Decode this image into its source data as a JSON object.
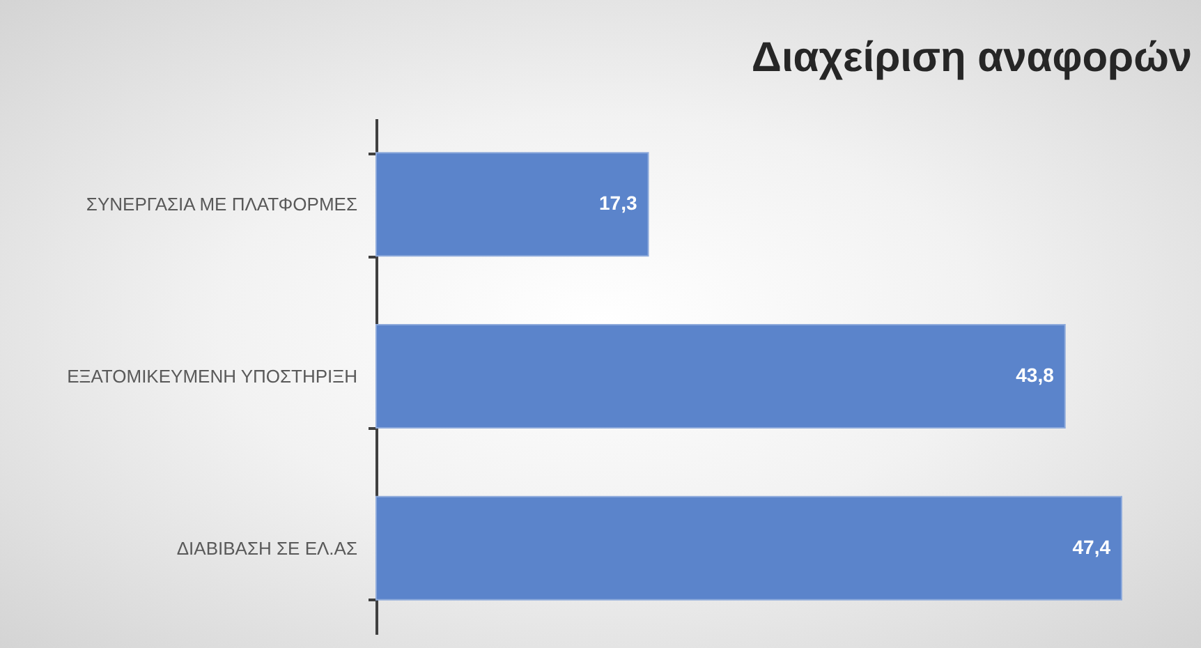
{
  "chart_data": {
    "type": "bar",
    "orientation": "horizontal",
    "title": "Διαχείριση αναφορών",
    "categories": [
      "ΣΥΝΕΡΓΑΣΙΑ ΜΕ ΠΛΑΤΦΟΡΜΕΣ",
      "ΕΞΑΤΟΜΙΚΕΥΜΕΝΗ ΥΠΟΣΤΗΡΙΞΗ",
      "ΔΙΑΒΙΒΑΣΗ ΣΕ ΕΛ.ΑΣ"
    ],
    "values": [
      17.3,
      43.8,
      47.4
    ],
    "value_labels": [
      "17,3",
      "43,8",
      "47,4"
    ],
    "color": "#5b84cb"
  }
}
